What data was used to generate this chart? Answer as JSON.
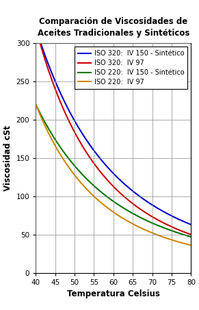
{
  "title": "Comparación de Viscosidades de\nAceites Tradicionales y Sintéticos",
  "xlabel": "Temperatura Celsius",
  "ylabel": "Viscosidad cSt",
  "xlim": [
    40,
    80
  ],
  "ylim": [
    0,
    300
  ],
  "xticks": [
    40,
    45,
    50,
    55,
    60,
    65,
    70,
    75,
    80
  ],
  "yticks": [
    0,
    50,
    100,
    150,
    200,
    250,
    300
  ],
  "series": [
    {
      "label": "ISO 320:  IV 150 - Sintético",
      "color": "#0000CC",
      "v40": 320,
      "v80": 63
    },
    {
      "label": "ISO 320:  IV 97",
      "color": "#CC0000",
      "v40": 320,
      "v80": 50
    },
    {
      "label": "ISO 220:  IV 150 - Sintético",
      "color": "#007700",
      "v40": 220,
      "v80": 47
    },
    {
      "label": "ISO 220:  IV 97",
      "color": "#CC8800",
      "v40": 220,
      "v80": 36
    }
  ],
  "background_color": "#FFFFFF",
  "grid_color": "#888888",
  "legend_fontsize": 7.0,
  "title_fontsize": 8.5,
  "axis_label_fontsize": 8.5,
  "tick_fontsize": 7.5,
  "linewidth": 1.5
}
